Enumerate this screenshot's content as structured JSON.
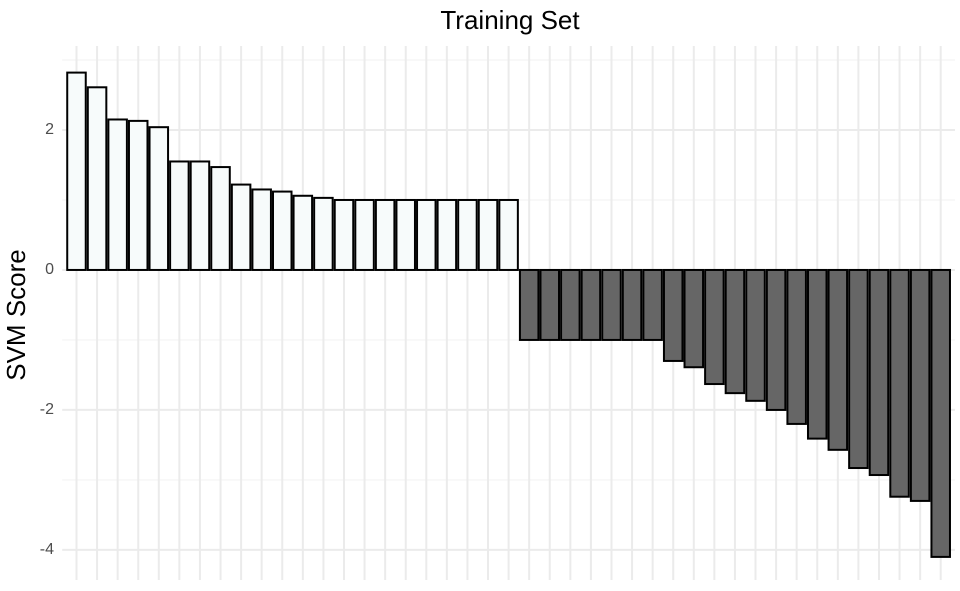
{
  "chart_data": {
    "type": "bar",
    "title": "Training Set",
    "y_label": "SVM Score",
    "categories": [
      null,
      null,
      null,
      null,
      null,
      null,
      null,
      null,
      null,
      null,
      null,
      null,
      null,
      null,
      null,
      null,
      null,
      null,
      null,
      null,
      null,
      null,
      null,
      null,
      null,
      null,
      null,
      null,
      null,
      null,
      null,
      null,
      null,
      null,
      null,
      null,
      null,
      null,
      null,
      null,
      null,
      null,
      null
    ],
    "values": [
      2.82,
      2.61,
      2.15,
      2.13,
      2.04,
      1.55,
      1.55,
      1.47,
      1.22,
      1.15,
      1.12,
      1.06,
      1.03,
      1.0,
      1.0,
      1.0,
      1.0,
      1.0,
      1.0,
      1.0,
      1.0,
      1.0,
      -1.0,
      -1.0,
      -1.0,
      -1.0,
      -1.0,
      -1.0,
      -1.0,
      -1.3,
      -1.39,
      -1.63,
      -1.76,
      -1.87,
      -2.0,
      -2.2,
      -2.41,
      -2.57,
      -2.83,
      -2.93,
      -3.24,
      -3.3,
      -4.1
    ],
    "positive_color": "#f7fbfb",
    "negative_color": "#666666",
    "ylim": [
      -4.43,
      3.2
    ],
    "yticks": [
      -4,
      -2,
      0,
      2
    ],
    "minor_yticks": [
      -3,
      -1,
      1,
      3
    ],
    "grid": true
  }
}
